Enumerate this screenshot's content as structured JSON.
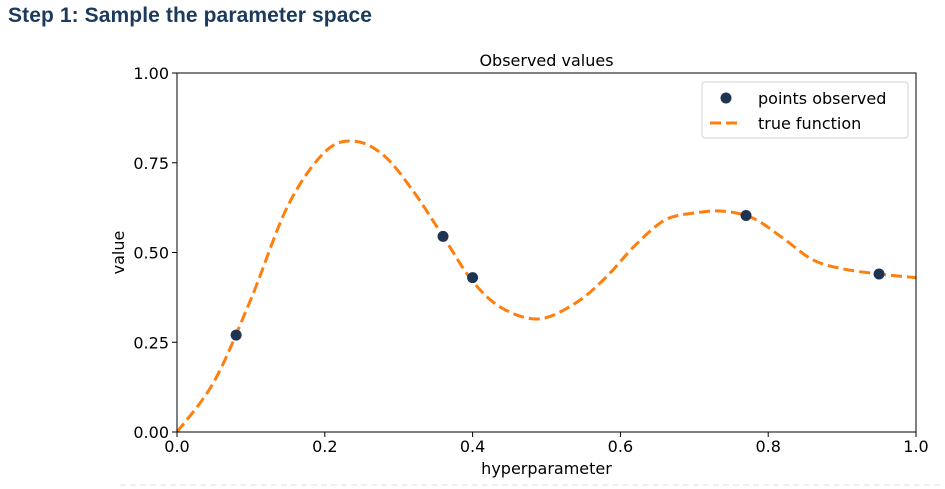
{
  "page": {
    "heading": "Step 1: Sample the parameter space"
  },
  "chart_data": {
    "type": "scatter",
    "title": "Observed values",
    "xlabel": "hyperparameter",
    "ylabel": "value",
    "xlim": [
      0.0,
      1.0
    ],
    "ylim": [
      0.0,
      1.0
    ],
    "xticks": [
      "0.0",
      "0.2",
      "0.4",
      "0.6",
      "0.8",
      "1.0"
    ],
    "yticks": [
      "0.00",
      "0.25",
      "0.50",
      "0.75",
      "1.00"
    ],
    "grid": false,
    "legend_position": "top-right",
    "series": [
      {
        "name": "points observed",
        "kind": "scatter",
        "color": "#1f3352",
        "x": [
          0.08,
          0.36,
          0.4,
          0.77,
          0.95
        ],
        "y": [
          0.27,
          0.545,
          0.43,
          0.603,
          0.44
        ]
      },
      {
        "name": "true function",
        "kind": "dashed-line",
        "color": "#ff7f0e",
        "x": [
          0.0,
          0.05,
          0.1,
          0.15,
          0.2,
          0.24,
          0.28,
          0.32,
          0.36,
          0.4,
          0.44,
          0.49,
          0.54,
          0.58,
          0.62,
          0.66,
          0.7,
          0.74,
          0.78,
          0.82,
          0.86,
          0.9,
          0.95,
          1.0
        ],
        "y": [
          0.0,
          0.14,
          0.37,
          0.63,
          0.78,
          0.81,
          0.77,
          0.67,
          0.545,
          0.42,
          0.345,
          0.315,
          0.36,
          0.43,
          0.52,
          0.59,
          0.61,
          0.615,
          0.595,
          0.54,
          0.48,
          0.455,
          0.44,
          0.43
        ]
      }
    ]
  }
}
